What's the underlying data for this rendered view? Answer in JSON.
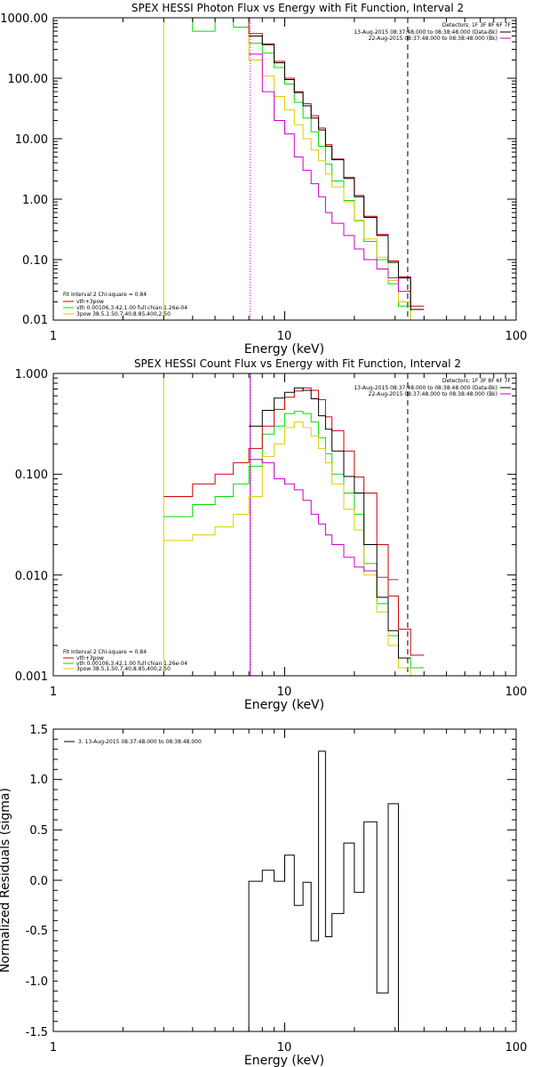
{
  "colors": {
    "total": "#cc0000",
    "vth": "#00dd00",
    "pow": "#ddcc00",
    "bk": "#cc00cc",
    "black": "#000000"
  },
  "chart_data": [
    {
      "type": "line",
      "title": "SPEX HESSI Photon Flux vs Energy with Fit Function, Interval 2",
      "xlabel": "Energy (keV)",
      "ylabel": "",
      "xscale": "log",
      "yscale": "log",
      "xlim": [
        1,
        100
      ],
      "ylim": [
        0.01,
        1000
      ],
      "xticks": [
        "1",
        "10",
        "100"
      ],
      "yticks": [
        "0.01",
        "0.10",
        "1.00",
        "10.00",
        "100.00",
        "1000.00"
      ],
      "detector_line": "Detectors: 1F 3F 8F 6F 7F",
      "legend_time": [
        "13-Aug-2015 08:37:48.000 to 08:38:48.000 (Data-Bk)",
        "22-Aug-2015 08:37:48.000 to 08:38:48.000 (Bk)"
      ],
      "fit_legend": [
        "Fit Interval 2   Chi-square = 0.84",
        "vth+3pow",
        "vth 0.00106,3.42,1.00  full chian 1.26e-04",
        "3pow 38.5,1.50,7.40,8.85,400,2.50"
      ],
      "vlines": [
        {
          "x": 3.0,
          "style": "solid",
          "color": "pow"
        },
        {
          "x": 7.1,
          "style": "dotted",
          "color": "bk"
        },
        {
          "x": 34,
          "style": "dashed",
          "color": "black"
        }
      ],
      "edges": [
        3.0,
        4.0,
        5.0,
        6.0,
        7.0,
        8.0,
        9.0,
        10.0,
        11.0,
        12.0,
        13.0,
        14.0,
        15.0,
        16.0,
        18.0,
        20.0,
        22.0,
        25.0,
        28.0,
        31.0,
        35.0,
        40.0
      ],
      "series": [
        {
          "name": "data",
          "color": "black",
          "values": [
            null,
            null,
            null,
            null,
            500,
            360,
            180,
            95,
            58,
            35,
            22,
            14,
            7.5,
            4.5,
            2.2,
            1.1,
            0.5,
            0.25,
            0.09,
            0.05,
            0.015
          ]
        },
        {
          "name": "vth+3pow",
          "color": "total",
          "values": [
            1500,
            1500,
            1500,
            1500,
            550,
            370,
            190,
            100,
            60,
            38,
            24,
            15,
            8,
            4.6,
            2.3,
            1.15,
            0.52,
            0.26,
            0.095,
            0.052,
            0.017
          ]
        },
        {
          "name": "vth",
          "color": "vth",
          "values": [
            1500,
            600,
            1100,
            700,
            380,
            260,
            150,
            80,
            40,
            22,
            13,
            7.5,
            3.8,
            2.0,
            0.95,
            0.44,
            0.2,
            0.1,
            0.04,
            0.017,
            0.008
          ]
        },
        {
          "name": "3pow",
          "color": "pow",
          "values": [
            1500,
            1500,
            1500,
            1500,
            200,
            110,
            50,
            30,
            17,
            10,
            6.5,
            4.3,
            2.6,
            1.6,
            0.9,
            0.45,
            0.22,
            0.11,
            0.045,
            0.02,
            0.008
          ]
        },
        {
          "name": "Bk",
          "color": "bk",
          "values": [
            null,
            null,
            null,
            null,
            250,
            60,
            20,
            12,
            5.0,
            3.0,
            1.8,
            1.1,
            0.6,
            0.4,
            0.25,
            0.15,
            0.1,
            0.07,
            0.05,
            0.03,
            null
          ]
        }
      ]
    },
    {
      "type": "line",
      "title": "SPEX HESSI Count Flux vs Energy with Fit Function, Interval 2",
      "xlabel": "Energy (keV)",
      "ylabel": "",
      "xscale": "log",
      "yscale": "log",
      "xlim": [
        1,
        100
      ],
      "ylim": [
        0.001,
        1.0
      ],
      "xticks": [
        "1",
        "10",
        "100"
      ],
      "yticks": [
        "0.001",
        "0.010",
        "0.100",
        "1.000"
      ],
      "detector_line": "Detectors: 1F 3F 8F 6F 7F",
      "legend_time": [
        "13-Aug-2015 08:37:48.000 to 08:38:48.000 (Data-Bk)",
        "22-Aug-2015 08:37:48.000 to 08:38:48.000 (Bk)"
      ],
      "fit_legend": [
        "Fit Interval 2   Chi-square = 0.84",
        "vth+3pow",
        "vth 0.00106,3.42,1.00  full chian 1.26e-04",
        "3pow 38.5,1.50,7.40,8.85,400,2.50"
      ],
      "vlines": [
        {
          "x": 3.0,
          "style": "solid",
          "color": "pow"
        },
        {
          "x": 7.1,
          "style": "dotted",
          "color": "black"
        },
        {
          "x": 7.1,
          "style": "solid",
          "color": "bk"
        },
        {
          "x": 34,
          "style": "dashed",
          "color": "black"
        }
      ],
      "edges": [
        3.0,
        4.0,
        5.0,
        6.0,
        7.0,
        8.0,
        9.0,
        10.0,
        11.0,
        12.0,
        13.0,
        14.0,
        15.0,
        16.0,
        18.0,
        20.0,
        22.0,
        25.0,
        28.0,
        31.0,
        35.0,
        40.0
      ],
      "series": [
        {
          "name": "data",
          "color": "black",
          "values": [
            null,
            null,
            null,
            null,
            0.3,
            0.43,
            0.57,
            0.65,
            0.72,
            0.68,
            0.56,
            0.38,
            0.28,
            0.17,
            0.095,
            0.065,
            0.02,
            0.006,
            0.0028,
            0.0015,
            null
          ]
        },
        {
          "name": "vth+3pow",
          "color": "total",
          "values": [
            0.06,
            0.08,
            0.1,
            0.13,
            0.18,
            0.3,
            0.44,
            0.58,
            0.67,
            0.72,
            0.68,
            0.55,
            0.37,
            0.27,
            0.17,
            0.094,
            0.065,
            0.02,
            0.0062,
            0.0029,
            0.0016
          ]
        },
        {
          "name": "vth",
          "color": "vth",
          "values": [
            0.038,
            0.05,
            0.06,
            0.08,
            0.12,
            0.25,
            0.3,
            0.4,
            0.42,
            0.4,
            0.33,
            0.23,
            0.16,
            0.1,
            0.065,
            0.04,
            0.013,
            0.0052,
            0.0025,
            0.0015,
            0.0012
          ]
        },
        {
          "name": "3pow",
          "color": "pow",
          "values": [
            0.022,
            0.025,
            0.03,
            0.04,
            0.06,
            0.15,
            0.2,
            0.29,
            0.33,
            0.29,
            0.24,
            0.18,
            0.13,
            0.08,
            0.045,
            0.028,
            0.01,
            0.0043,
            0.002,
            0.0012,
            0.001
          ]
        },
        {
          "name": "Bk",
          "color": "bk",
          "values": [
            null,
            null,
            null,
            null,
            0.14,
            0.13,
            0.09,
            0.08,
            0.07,
            0.055,
            0.04,
            0.032,
            0.025,
            0.02,
            0.015,
            0.012,
            0.011,
            0.0095,
            0.009,
            null,
            null
          ]
        }
      ]
    },
    {
      "type": "line",
      "title": "",
      "xlabel": "Energy (keV)",
      "ylabel": "Normalized Residuals (sigma)",
      "xscale": "log",
      "xlim": [
        1,
        100
      ],
      "ylim": [
        -1.5,
        1.5
      ],
      "xticks": [
        "1",
        "10",
        "100"
      ],
      "yticks": [
        "-1.5",
        "-1.0",
        "-0.5",
        "0.0",
        "0.5",
        "1.0",
        "1.5"
      ],
      "legend": "3. 13-Aug-2015 08:37:48.000 to 08:38:48.000",
      "edges": [
        7.0,
        8.0,
        9.0,
        10.0,
        11.0,
        12.0,
        13.0,
        14.0,
        15.0,
        16.0,
        18.0,
        20.0,
        22.0,
        25.0,
        28.0,
        31.0,
        34.0
      ],
      "values": [
        -0.01,
        0.1,
        -0.01,
        0.25,
        -0.25,
        -0.02,
        -0.6,
        1.28,
        -0.56,
        -0.33,
        0.37,
        -0.12,
        0.58,
        -1.12,
        0.76,
        -1.6
      ]
    }
  ]
}
